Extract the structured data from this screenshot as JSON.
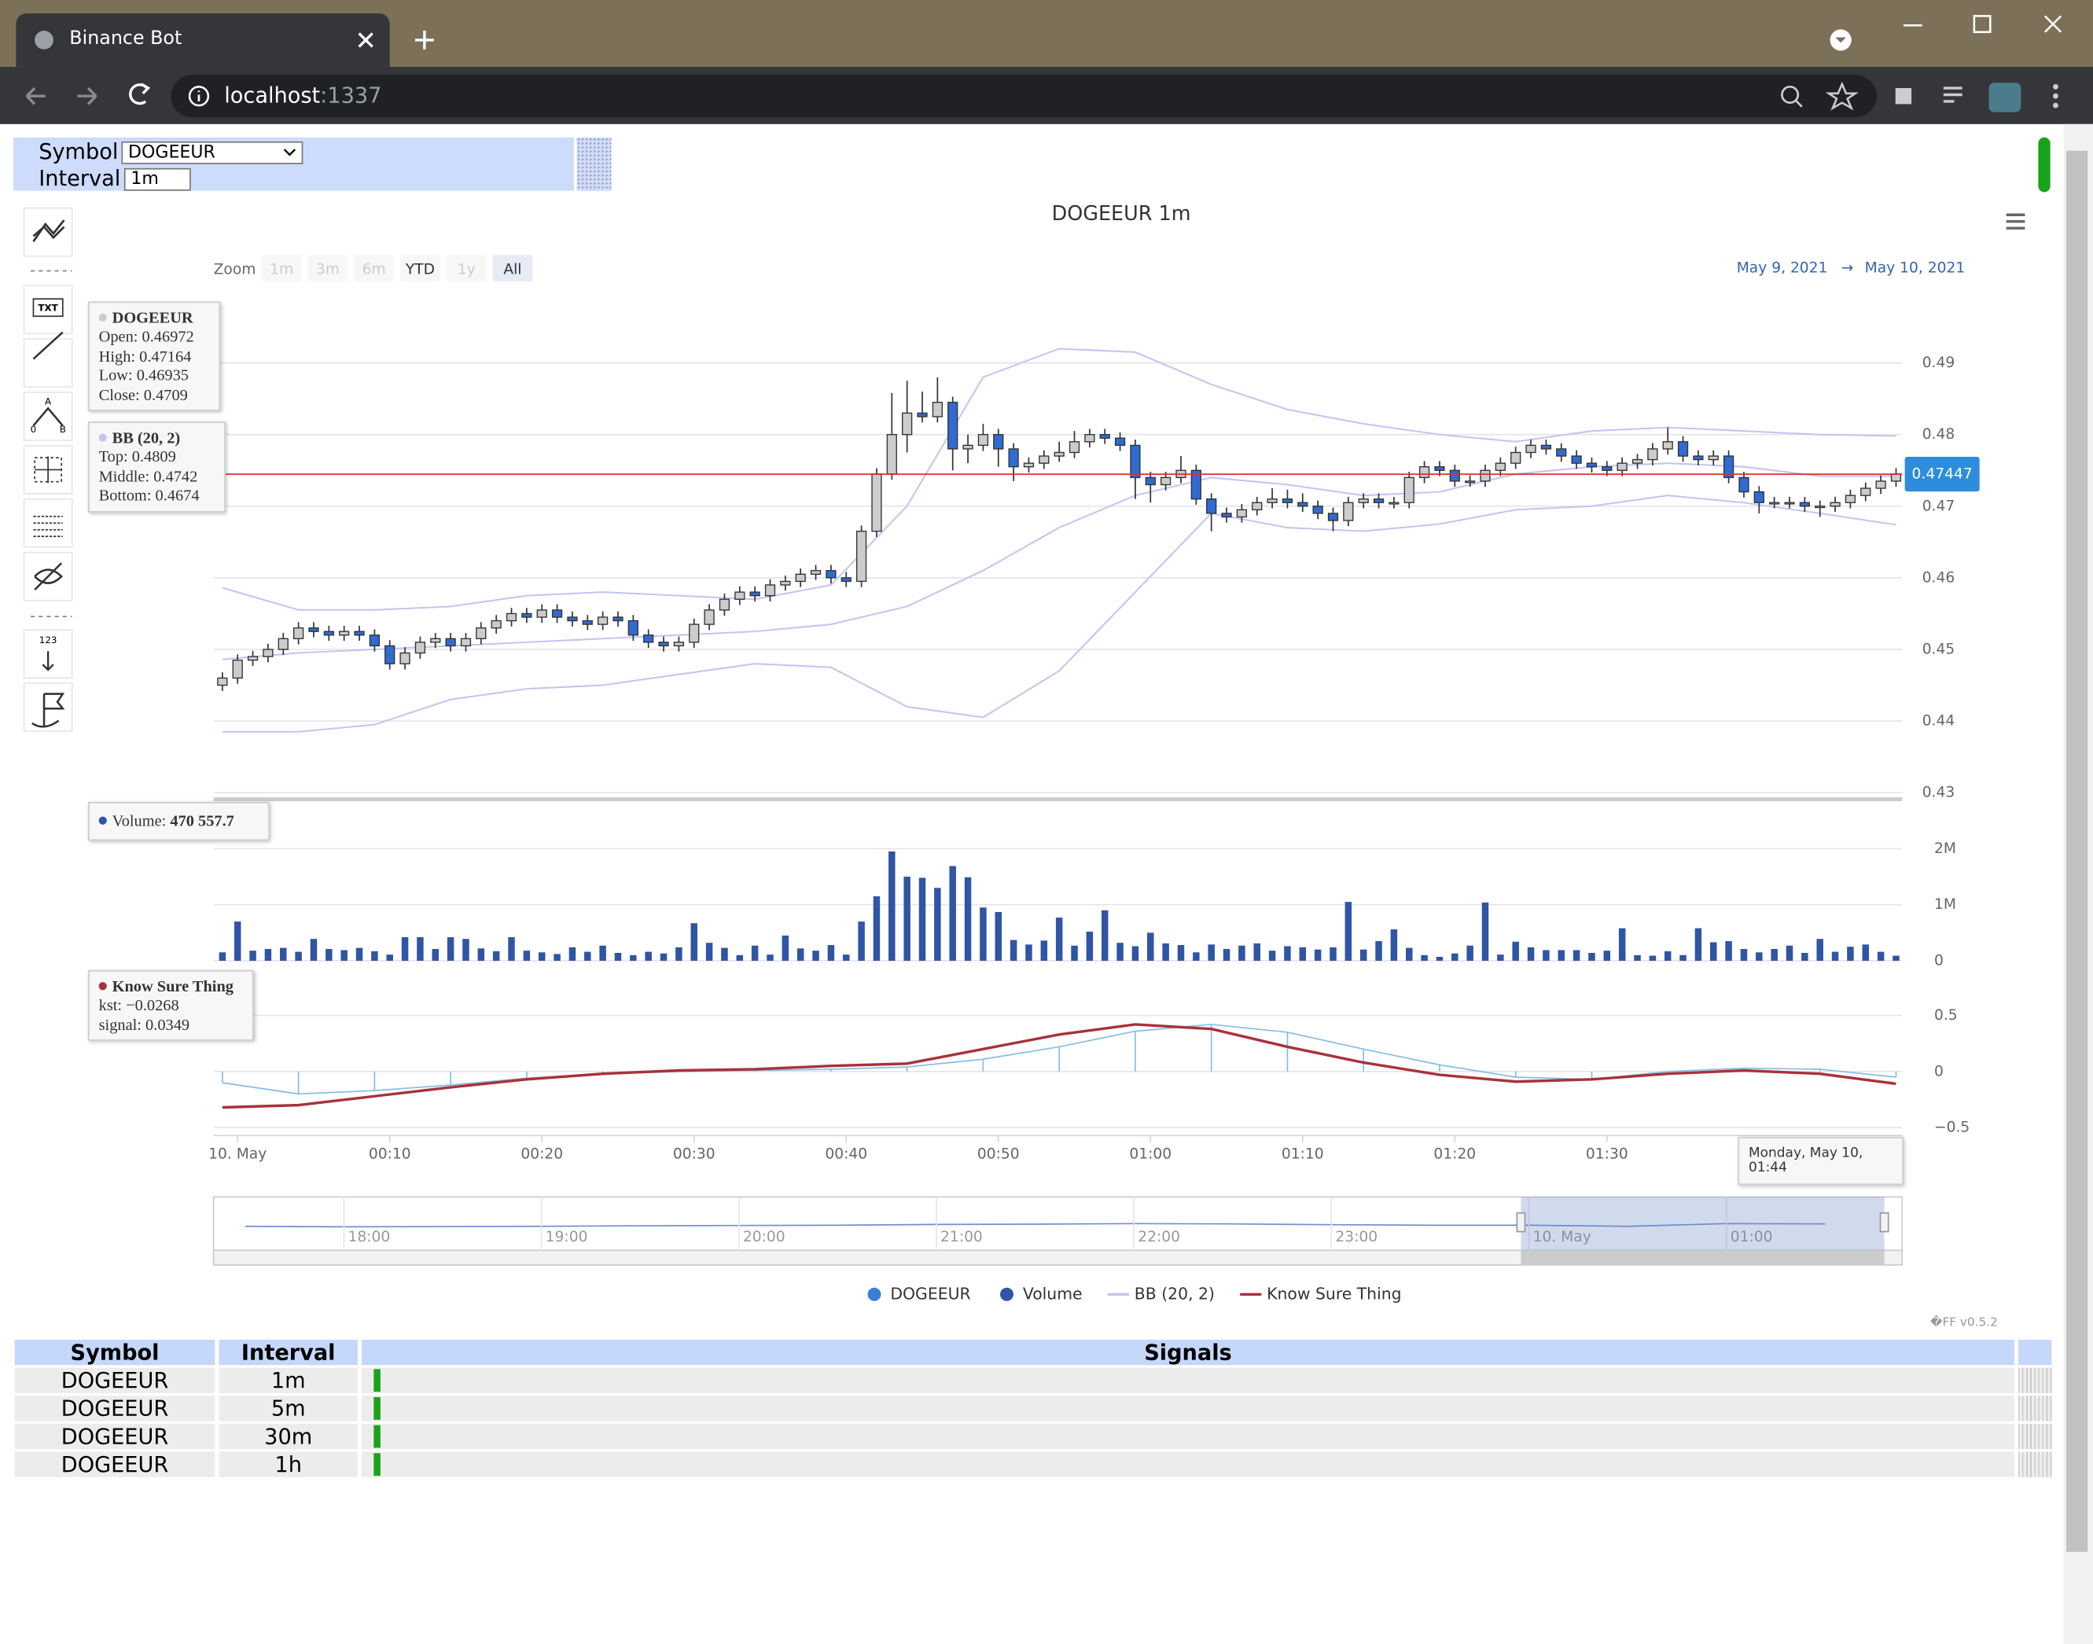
{
  "browser": {
    "tab_title": "Binance Bot",
    "url_host": "localhost",
    "url_port": ":1337"
  },
  "controls": {
    "symbol_label": "Symbol",
    "symbol_value": "DOGEEUR",
    "interval_label": "Interval",
    "interval_value": "1m"
  },
  "toolbar": {
    "text_icon": "TXT",
    "number_icon": "123",
    "fib_labels": [
      "A",
      "0",
      "B"
    ]
  },
  "chart_data": {
    "type": "candlestick",
    "title": "DOGEEUR 1m",
    "name": "DOGEEUR",
    "color": "#2f6bd1",
    "up_color": "#cccccc",
    "grid": true,
    "zoom": {
      "label": "Zoom",
      "buttons": [
        "1m",
        "3m",
        "6m",
        "YTD",
        "1y",
        "All"
      ],
      "enabled": [
        false,
        false,
        false,
        true,
        false,
        true
      ],
      "selected": "All"
    },
    "range": {
      "from": "May 9, 2021",
      "arrow": "→",
      "to": "May 10, 2021"
    },
    "xlim": [
      -1.58,
      109.4
    ],
    "xticks": [
      {
        "value": 0,
        "label": "10. May"
      },
      {
        "value": 10,
        "label": "00:10"
      },
      {
        "value": 20,
        "label": "00:20"
      },
      {
        "value": 30,
        "label": "00:30"
      },
      {
        "value": 40,
        "label": "00:40"
      },
      {
        "value": 50,
        "label": "00:50"
      },
      {
        "value": 60,
        "label": "01:00"
      },
      {
        "value": 70,
        "label": "01:10"
      },
      {
        "value": 80,
        "label": "01:20"
      },
      {
        "value": 90,
        "label": "01:30"
      }
    ],
    "ylim": [
      0.43,
      0.49
    ],
    "yticks": [
      0.43,
      0.44,
      0.45,
      0.46,
      0.47,
      0.48,
      0.49
    ],
    "current_price": 0.47447,
    "x": [
      -1,
      0,
      1,
      2,
      3,
      4,
      5,
      6,
      7,
      8,
      9,
      10,
      11,
      12,
      13,
      14,
      15,
      16,
      17,
      18,
      19,
      20,
      21,
      22,
      23,
      24,
      25,
      26,
      27,
      28,
      29,
      30,
      31,
      32,
      33,
      34,
      35,
      36,
      37,
      38,
      39,
      40,
      41,
      42,
      43,
      44,
      45,
      46,
      47,
      48,
      49,
      50,
      51,
      52,
      53,
      54,
      55,
      56,
      57,
      58,
      59,
      60,
      61,
      62,
      63,
      64,
      65,
      66,
      67,
      68,
      69,
      70,
      71,
      72,
      73,
      74,
      75,
      76,
      77,
      78,
      79,
      80,
      81,
      82,
      83,
      84,
      85,
      86,
      87,
      88,
      89,
      90,
      91,
      92,
      93,
      94,
      95,
      96,
      97,
      98,
      99,
      100,
      101,
      102,
      103,
      104,
      105,
      106,
      107,
      108,
      109
    ],
    "open": [
      0.445,
      0.446,
      0.4485,
      0.449,
      0.45,
      0.4515,
      0.453,
      0.4525,
      0.452,
      0.4525,
      0.452,
      0.4505,
      0.448,
      0.4495,
      0.451,
      0.4515,
      0.4505,
      0.4515,
      0.453,
      0.454,
      0.455,
      0.4545,
      0.4555,
      0.4545,
      0.454,
      0.4535,
      0.4545,
      0.454,
      0.452,
      0.451,
      0.4505,
      0.451,
      0.4535,
      0.4555,
      0.457,
      0.458,
      0.4575,
      0.459,
      0.4595,
      0.4605,
      0.461,
      0.46,
      0.4595,
      0.4665,
      0.4745,
      0.48,
      0.483,
      0.4825,
      0.4845,
      0.478,
      0.4785,
      0.48,
      0.478,
      0.4755,
      0.476,
      0.477,
      0.4775,
      0.479,
      0.48,
      0.4795,
      0.4785,
      0.474,
      0.473,
      0.474,
      0.475,
      0.471,
      0.469,
      0.4685,
      0.4695,
      0.4705,
      0.471,
      0.4705,
      0.47,
      0.469,
      0.468,
      0.4705,
      0.471,
      0.4705,
      0.4705,
      0.474,
      0.4755,
      0.475,
      0.4735,
      0.4735,
      0.475,
      0.476,
      0.4775,
      0.4785,
      0.478,
      0.477,
      0.476,
      0.4755,
      0.475,
      0.476,
      0.4765,
      0.478,
      0.479,
      0.477,
      0.4765,
      0.477,
      0.474,
      0.472,
      0.4705,
      0.4705,
      0.4705,
      0.47,
      0.47,
      0.4705,
      0.4715,
      0.4725,
      0.4735
    ],
    "high": [
      0.4468,
      0.4493,
      0.4498,
      0.4508,
      0.4523,
      0.4538,
      0.4538,
      0.4533,
      0.4533,
      0.4533,
      0.4528,
      0.4513,
      0.4503,
      0.4518,
      0.4523,
      0.4523,
      0.4523,
      0.4538,
      0.4548,
      0.4558,
      0.4558,
      0.4563,
      0.4563,
      0.4553,
      0.4548,
      0.4553,
      0.4553,
      0.4548,
      0.4528,
      0.4518,
      0.4518,
      0.4543,
      0.4563,
      0.4578,
      0.4588,
      0.4588,
      0.4598,
      0.4603,
      0.4613,
      0.4618,
      0.4618,
      0.4608,
      0.4673,
      0.4753,
      0.4858,
      0.4875,
      0.486,
      0.488,
      0.4853,
      0.48,
      0.4815,
      0.4808,
      0.4788,
      0.4768,
      0.4778,
      0.479,
      0.4805,
      0.4808,
      0.4808,
      0.4803,
      0.4793,
      0.4748,
      0.4748,
      0.477,
      0.4758,
      0.4718,
      0.4698,
      0.4703,
      0.4713,
      0.4725,
      0.4723,
      0.4718,
      0.4708,
      0.4698,
      0.4713,
      0.4718,
      0.4718,
      0.4713,
      0.4748,
      0.4763,
      0.4763,
      0.4758,
      0.4743,
      0.4758,
      0.4768,
      0.4783,
      0.4793,
      0.4793,
      0.4788,
      0.4778,
      0.4768,
      0.4763,
      0.4768,
      0.4773,
      0.4788,
      0.481,
      0.4798,
      0.4778,
      0.4778,
      0.4778,
      0.4748,
      0.4728,
      0.4713,
      0.4713,
      0.4713,
      0.4708,
      0.4713,
      0.4723,
      0.4733,
      0.4743,
      0.4753
    ],
    "low": [
      0.4442,
      0.4452,
      0.4477,
      0.4482,
      0.4492,
      0.4507,
      0.4517,
      0.4512,
      0.4512,
      0.4512,
      0.4497,
      0.4472,
      0.4472,
      0.4487,
      0.4502,
      0.4497,
      0.4497,
      0.4507,
      0.4522,
      0.4532,
      0.4537,
      0.4537,
      0.4537,
      0.4532,
      0.4527,
      0.4527,
      0.4532,
      0.4512,
      0.4502,
      0.4497,
      0.4497,
      0.4502,
      0.4527,
      0.4547,
      0.4562,
      0.4567,
      0.4567,
      0.4582,
      0.4587,
      0.4597,
      0.4592,
      0.4587,
      0.4587,
      0.4657,
      0.4737,
      0.4775,
      0.4817,
      0.4817,
      0.475,
      0.476,
      0.4777,
      0.4755,
      0.4735,
      0.4747,
      0.4752,
      0.4762,
      0.4767,
      0.4782,
      0.4787,
      0.4777,
      0.471,
      0.4705,
      0.4722,
      0.4732,
      0.4702,
      0.4665,
      0.4677,
      0.4677,
      0.4687,
      0.4697,
      0.4697,
      0.4692,
      0.4682,
      0.4665,
      0.4672,
      0.4697,
      0.4697,
      0.4697,
      0.4697,
      0.4732,
      0.4742,
      0.4727,
      0.4727,
      0.4727,
      0.4742,
      0.4752,
      0.4767,
      0.4772,
      0.4762,
      0.4752,
      0.4747,
      0.4742,
      0.4742,
      0.4752,
      0.4757,
      0.4772,
      0.4762,
      0.4757,
      0.4757,
      0.4732,
      0.4712,
      0.469,
      0.4697,
      0.4697,
      0.4692,
      0.4685,
      0.4692,
      0.4697,
      0.4707,
      0.4717,
      0.4727
    ],
    "close": [
      0.446,
      0.4485,
      0.449,
      0.45,
      0.4515,
      0.453,
      0.4525,
      0.452,
      0.4525,
      0.452,
      0.4505,
      0.448,
      0.4495,
      0.451,
      0.4515,
      0.4505,
      0.4515,
      0.453,
      0.454,
      0.455,
      0.4545,
      0.4555,
      0.4545,
      0.454,
      0.4535,
      0.4545,
      0.454,
      0.452,
      0.451,
      0.4505,
      0.451,
      0.4535,
      0.4555,
      0.457,
      0.458,
      0.4575,
      0.459,
      0.4595,
      0.4605,
      0.461,
      0.46,
      0.4595,
      0.4665,
      0.4745,
      0.48,
      0.483,
      0.4825,
      0.4845,
      0.478,
      0.4785,
      0.48,
      0.478,
      0.4755,
      0.476,
      0.477,
      0.4775,
      0.479,
      0.48,
      0.4795,
      0.4785,
      0.474,
      0.473,
      0.474,
      0.475,
      0.471,
      0.469,
      0.4685,
      0.4695,
      0.4705,
      0.471,
      0.4705,
      0.47,
      0.469,
      0.468,
      0.4705,
      0.471,
      0.4705,
      0.4705,
      0.474,
      0.4755,
      0.475,
      0.4735,
      0.4735,
      0.475,
      0.476,
      0.4775,
      0.4785,
      0.478,
      0.477,
      0.476,
      0.4755,
      0.475,
      0.476,
      0.4765,
      0.478,
      0.479,
      0.477,
      0.4765,
      0.477,
      0.474,
      0.472,
      0.4705,
      0.4705,
      0.4705,
      0.47,
      0.47,
      0.4705,
      0.4715,
      0.4725,
      0.4735,
      0.4745
    ],
    "bb": {
      "name": "BB (20, 2)",
      "color": "#c4c4f4",
      "x": [
        -1,
        4,
        9,
        14,
        19,
        24,
        29,
        34,
        39,
        44,
        49,
        54,
        59,
        64,
        69,
        74,
        79,
        84,
        89,
        94,
        99,
        104,
        109
      ],
      "top": [
        0.4586,
        0.4555,
        0.4555,
        0.456,
        0.4575,
        0.458,
        0.4575,
        0.457,
        0.459,
        0.47,
        0.488,
        0.492,
        0.4915,
        0.487,
        0.4835,
        0.4815,
        0.48,
        0.479,
        0.4805,
        0.481,
        0.4805,
        0.48,
        0.4798
      ],
      "middle": [
        0.4486,
        0.4495,
        0.45,
        0.4505,
        0.451,
        0.4515,
        0.452,
        0.4525,
        0.4535,
        0.456,
        0.461,
        0.467,
        0.4715,
        0.474,
        0.473,
        0.4715,
        0.472,
        0.4745,
        0.4755,
        0.476,
        0.4755,
        0.4742,
        0.4742
      ],
      "bottom": [
        0.4385,
        0.4385,
        0.4395,
        0.443,
        0.4445,
        0.445,
        0.4465,
        0.448,
        0.4475,
        0.442,
        0.4405,
        0.447,
        0.458,
        0.469,
        0.467,
        0.4665,
        0.4675,
        0.4695,
        0.47,
        0.4715,
        0.4705,
        0.469,
        0.4674
      ]
    },
    "volume": {
      "name": "Volume",
      "color": "#2f55a4",
      "ylim": [
        0,
        2000000
      ],
      "yticks": [
        0,
        {
          "value": 1000000,
          "label": "1M"
        },
        {
          "value": 2000000,
          "label": "2M"
        }
      ],
      "values": [
        150000,
        700000,
        180000,
        210000,
        230000,
        160000,
        390000,
        210000,
        190000,
        230000,
        170000,
        110000,
        420000,
        420000,
        210000,
        420000,
        390000,
        220000,
        170000,
        420000,
        180000,
        150000,
        120000,
        240000,
        160000,
        270000,
        140000,
        100000,
        160000,
        130000,
        240000,
        670000,
        320000,
        230000,
        100000,
        270000,
        110000,
        450000,
        220000,
        180000,
        280000,
        110000,
        700000,
        1150000,
        1950000,
        1500000,
        1480000,
        1300000,
        1690000,
        1490000,
        950000,
        870000,
        370000,
        290000,
        360000,
        770000,
        270000,
        520000,
        900000,
        320000,
        260000,
        500000,
        310000,
        280000,
        150000,
        290000,
        210000,
        270000,
        310000,
        180000,
        260000,
        240000,
        200000,
        240000,
        1050000,
        200000,
        350000,
        560000,
        230000,
        100000,
        70000,
        130000,
        270000,
        1040000,
        110000,
        340000,
        240000,
        190000,
        190000,
        190000,
        140000,
        180000,
        580000,
        100000,
        90000,
        170000,
        100000,
        580000,
        330000,
        350000,
        210000,
        150000,
        210000,
        270000,
        140000,
        390000,
        160000,
        250000,
        290000,
        160000,
        90000
      ]
    },
    "kst": {
      "name": "Know Sure Thing",
      "color": "#a8323a",
      "signal_color": "#86bde8",
      "ylim": [
        -0.5,
        0.5
      ],
      "yticks": [
        {
          "value": -0.5,
          "label": "−0.5"
        },
        0,
        0.5
      ],
      "x": [
        -1,
        4,
        9,
        14,
        19,
        24,
        29,
        34,
        39,
        44,
        49,
        54,
        59,
        64,
        69,
        74,
        79,
        84,
        89,
        94,
        99,
        104,
        109
      ],
      "kst": [
        -0.32,
        -0.3,
        -0.22,
        -0.14,
        -0.07,
        -0.02,
        0.01,
        0.02,
        0.05,
        0.07,
        0.2,
        0.33,
        0.42,
        0.38,
        0.22,
        0.08,
        -0.03,
        -0.09,
        -0.07,
        -0.02,
        0.01,
        -0.02,
        -0.11
      ],
      "signal": [
        -0.1,
        -0.2,
        -0.17,
        -0.12,
        -0.06,
        -0.02,
        0.0,
        0.01,
        0.02,
        0.04,
        0.11,
        0.22,
        0.36,
        0.42,
        0.35,
        0.2,
        0.06,
        -0.05,
        -0.07,
        0.0,
        0.03,
        0.02,
        -0.05
      ]
    },
    "tooltips": {
      "price": {
        "title": "DOGEEUR",
        "lines": [
          "Open: 0.46972",
          "High: 0.47164",
          "Low: 0.46935",
          "Close: 0.4709"
        ]
      },
      "bb": {
        "title": "BB (20, 2)",
        "lines": [
          "Top: 0.4809",
          "Middle: 0.4742",
          "Bottom: 0.4674"
        ]
      },
      "volume": {
        "title": "Volume:",
        "value": "470 557.7"
      },
      "kst": {
        "title": "Know Sure Thing",
        "lines": [
          "kst: −0.0268",
          "signal: 0.0349"
        ]
      }
    },
    "crosshair_label": "Monday, May 10, 01:44",
    "navigator": {
      "xlim": [
        17.34,
        25.89
      ],
      "ylim": [
        0.4,
        0.5
      ],
      "selection": [
        23.96,
        25.8
      ],
      "xticks": [
        {
          "value": 18,
          "label": "18:00"
        },
        {
          "value": 19,
          "label": "19:00"
        },
        {
          "value": 20,
          "label": "20:00"
        },
        {
          "value": 21,
          "label": "21:00"
        },
        {
          "value": 22,
          "label": "22:00"
        },
        {
          "value": 23,
          "label": "23:00"
        },
        {
          "value": 24,
          "label": "10. May"
        },
        {
          "value": 25,
          "label": "01:00"
        }
      ],
      "x": [
        17.5,
        18,
        18.5,
        19,
        19.5,
        20,
        20.5,
        21,
        21.5,
        22,
        22.5,
        23,
        23.5,
        24,
        24.5,
        25,
        25.5
      ],
      "values": [
        0.445,
        0.444,
        0.4445,
        0.445,
        0.446,
        0.4465,
        0.447,
        0.4485,
        0.449,
        0.45,
        0.4495,
        0.448,
        0.447,
        0.447,
        0.445,
        0.45,
        0.4495
      ]
    }
  },
  "version": "�FF v0.5.2",
  "table": {
    "headers": [
      "Symbol",
      "Interval",
      "Signals"
    ],
    "rows": [
      [
        "DOGEEUR",
        "1m"
      ],
      [
        "DOGEEUR",
        "5m"
      ],
      [
        "DOGEEUR",
        "30m"
      ],
      [
        "DOGEEUR",
        "1h"
      ]
    ]
  }
}
